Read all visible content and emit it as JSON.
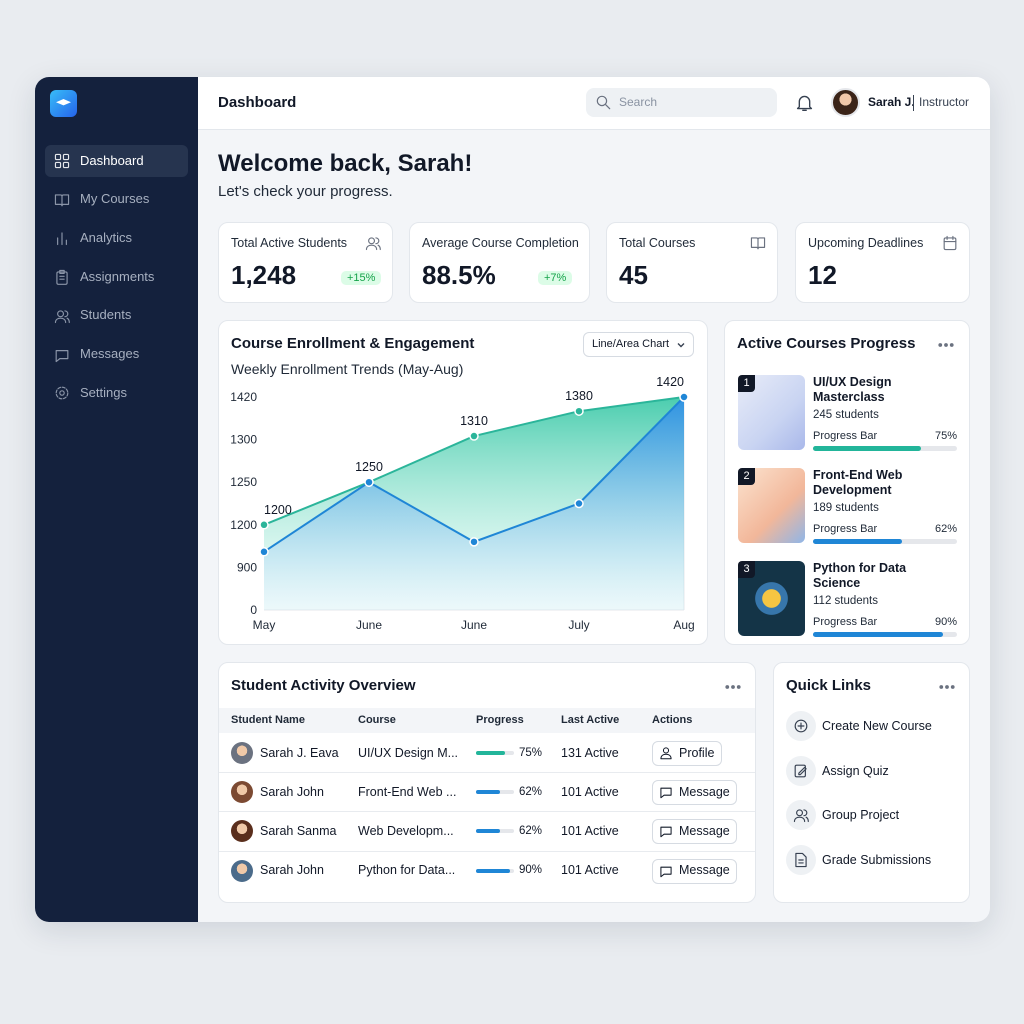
{
  "sidebar": {
    "nav": [
      "Dashboard",
      "My Courses",
      "Analytics",
      "Assignments",
      "Students",
      "Messages",
      "Settings"
    ]
  },
  "header": {
    "title": "Dashboard",
    "search": "Search",
    "user_name": "Sarah J.",
    "user_role": "Instructor"
  },
  "welcome": {
    "title": "Welcome back, Sarah!",
    "subtitle": "Let's check your progress."
  },
  "stats": [
    {
      "label": "Total Active Students",
      "value": "1,248",
      "change": "+15%"
    },
    {
      "label": "Average Course Completion",
      "value": "88.5%",
      "change": "+7%"
    },
    {
      "label": "Total Courses",
      "value": "45"
    },
    {
      "label": "Upcoming Deadlines",
      "value": "12"
    }
  ],
  "enrollment": {
    "control": "Line/Area Chart"
  },
  "chart_data": {
    "type": "line",
    "title": "Course Enrollment & Engagement",
    "subtitle": "Weekly Enrollment Trends (May-Aug)",
    "categories": [
      "May",
      "June",
      "June",
      "July",
      "Aug"
    ],
    "series": [
      {
        "color": "#2bb59a",
        "values": [
          1200,
          1250,
          1310,
          1380,
          1420
        ]
      },
      {
        "color": "#1f86d6",
        "values": [
          1010,
          1250,
          1080,
          1225,
          1420
        ]
      }
    ],
    "ylim": [
      0,
      1420
    ],
    "yticks": [
      0,
      900,
      1200,
      1250,
      1300,
      1420
    ]
  },
  "active_courses": {
    "title": "Active Courses Progress",
    "items": [
      {
        "rank": "1",
        "title": "UI/UX Design Masterclass",
        "students": "245 students",
        "bar_label": "Progress Bar",
        "progress": 75,
        "progress_label": "75%",
        "color": "#22b59a"
      },
      {
        "rank": "2",
        "title": "Front-End Web Development",
        "students": "189 students",
        "bar_label": "Progress Bar",
        "progress": 62,
        "progress_label": "62%",
        "color": "#1f86d6"
      },
      {
        "rank": "3",
        "title": "Python for Data Science",
        "students": "112 students",
        "bar_label": "Progress Bar",
        "progress": 90,
        "progress_label": "90%",
        "color": "#1f86d6"
      }
    ]
  },
  "activity": {
    "title": "Student Activity Overview",
    "columns": [
      "Student Name",
      "Course",
      "Progress",
      "Last Active",
      "Actions"
    ],
    "rows": [
      {
        "name": "Sarah J. Eava",
        "course": "UI/UX Design M...",
        "progress": 75,
        "progress_label": "75%",
        "last_active": "131 Active",
        "action": "Profile",
        "color": "#22b59a"
      },
      {
        "name": "Sarah John",
        "course": "Front-End Web ...",
        "progress": 62,
        "progress_label": "62%",
        "last_active": "101 Active",
        "action": "Message",
        "color": "#1f86d6"
      },
      {
        "name": "Sarah Sanma",
        "course": "Web Developm...",
        "progress": 62,
        "progress_label": "62%",
        "last_active": "101 Active",
        "action": "Message",
        "color": "#1f86d6"
      },
      {
        "name": "Sarah John",
        "course": "Python for Data...",
        "progress": 90,
        "progress_label": "90%",
        "last_active": "101 Active",
        "action": "Message",
        "color": "#1f86d6"
      }
    ]
  },
  "quick_links": {
    "title": "Quick Links",
    "items": [
      "Create New Course",
      "Assign Quiz",
      "Group Project",
      "Grade Submissions"
    ]
  }
}
